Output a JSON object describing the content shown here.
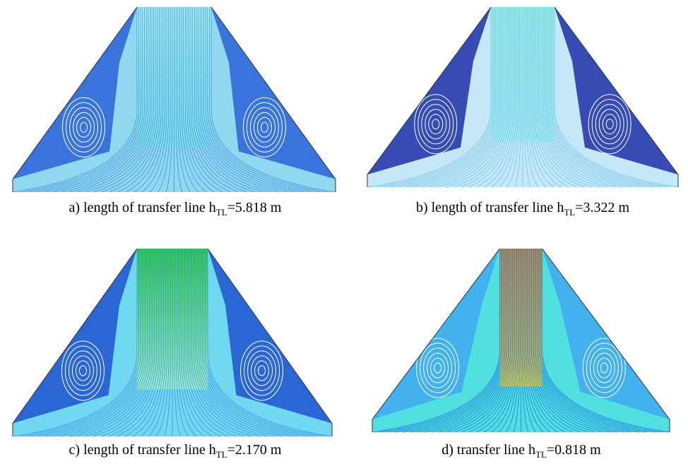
{
  "figure": {
    "panels": [
      {
        "label_prefix": "a) length of transfer line h",
        "subscript": "TL",
        "label_suffix": "=5.818 m"
      },
      {
        "label_prefix": "b) length of transfer line h",
        "subscript": "TL",
        "label_suffix": "=3.322 m"
      },
      {
        "label_prefix": "c) length of transfer line h",
        "subscript": "TL",
        "label_suffix": "=2.170 m"
      },
      {
        "label_prefix": "d) transfer line h",
        "subscript": "TL",
        "label_suffix": "=0.818 m"
      }
    ]
  }
}
